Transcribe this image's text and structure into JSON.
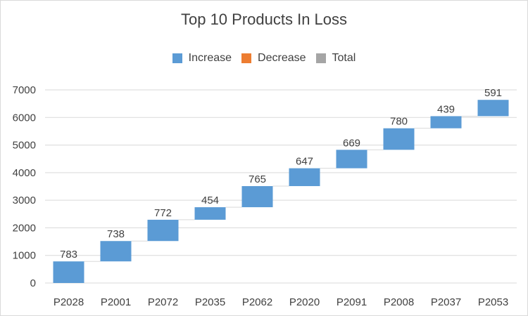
{
  "chart_data": {
    "type": "bar",
    "subtype": "waterfall",
    "title": "Top 10 Products In Loss",
    "legend": {
      "placement": "top",
      "items": [
        {
          "label": "Increase",
          "color": "#5b9bd5"
        },
        {
          "label": "Decrease",
          "color": "#ed7d31"
        },
        {
          "label": "Total",
          "color": "#a5a5a5"
        }
      ]
    },
    "categories": [
      "P2028",
      "P2001",
      "P2072",
      "P2035",
      "P2062",
      "P2020",
      "P2091",
      "P2008",
      "P2037",
      "P2053"
    ],
    "values": [
      783,
      738,
      772,
      454,
      765,
      647,
      669,
      780,
      439,
      591
    ],
    "ylim": [
      0,
      7000
    ],
    "yticks": [
      "0",
      "1000",
      "2000",
      "3000",
      "4000",
      "5000",
      "6000",
      "7000"
    ],
    "grid": true,
    "connectors": true,
    "colors": {
      "increase": "#5b9bd5",
      "gridline": "#d9d9d9",
      "connector": "#d9d9d9",
      "text": "#404040"
    }
  }
}
